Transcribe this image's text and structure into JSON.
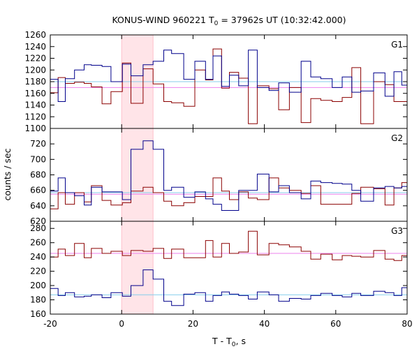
{
  "title": "KONUS-WIND 960221 T",
  "title_sub": "0",
  "title_rest": " = 37962s UT (10:32:42.000)",
  "xlabel_main": "T - T",
  "xlabel_sub": "0",
  "xlabel_rest": ", s",
  "ylabel": "counts / sec",
  "colors": {
    "series_a": "#8b0000",
    "series_b": "#00008b",
    "bg_a": "#ee82ee",
    "bg_b": "#87ceeb",
    "highlight": "#ffe4e8",
    "highlight_edge": "#ffc0cb"
  },
  "chart_data": {
    "type": "line",
    "step": true,
    "xlim": [
      -20,
      80
    ],
    "xticks": [
      -20,
      0,
      20,
      40,
      60,
      80
    ],
    "highlight_interval": [
      0,
      8.8
    ],
    "bin_edges": [
      -20,
      -17.8,
      -15.8,
      -13.2,
      -10.5,
      -8.5,
      -5.5,
      -3.0,
      0.2,
      2.6,
      6.0,
      8.8,
      11.8,
      14.0,
      17.4,
      20.5,
      23.5,
      25.6,
      28.0,
      30.2,
      32.8,
      35.5,
      38.0,
      41.3,
      44.0,
      47.0,
      50.3,
      53.0,
      55.8,
      59.0,
      61.8,
      64.5,
      67.0,
      70.6,
      73.8,
      76.3,
      78.5,
      80
    ],
    "panels": [
      {
        "label": "G1",
        "ylim": [
          1100,
          1260
        ],
        "yticks": [
          1100,
          1120,
          1140,
          1160,
          1180,
          1200,
          1220,
          1240,
          1260
        ],
        "background_a": 1170,
        "background_b": 1180,
        "series_a_values": [
          1161,
          1187,
          1177,
          1179,
          1177,
          1171,
          1142,
          1163,
          1212,
          1143,
          1202,
          1176,
          1146,
          1144,
          1138,
          1200,
          1183,
          1236,
          1169,
          1196,
          1186,
          1108,
          1173,
          1168,
          1132,
          1170,
          1110,
          1151,
          1148,
          1146,
          1153,
          1204,
          1108,
          1180,
          1175,
          1146,
          1146
        ],
        "series_b_values": [
          1184,
          1146,
          1185,
          1200,
          1209,
          1208,
          1206,
          1180,
          1210,
          1190,
          1209,
          1215,
          1234,
          1228,
          1184,
          1215,
          1184,
          1224,
          1172,
          1191,
          1173,
          1234,
          1170,
          1165,
          1178,
          1162,
          1215,
          1188,
          1185,
          1170,
          1188,
          1162,
          1164,
          1195,
          1155,
          1197,
          1174
        ]
      },
      {
        "label": "G2",
        "ylim": [
          620,
          740
        ],
        "yticks": [
          620,
          640,
          660,
          680,
          700,
          720
        ],
        "background_a": 655,
        "background_b": 657,
        "series_a_values": [
          636,
          657,
          642,
          657,
          645,
          666,
          647,
          641,
          644,
          659,
          664,
          657,
          646,
          640,
          644,
          652,
          652,
          676,
          659,
          648,
          658,
          650,
          648,
          676,
          663,
          660,
          656,
          666,
          642,
          642,
          642,
          656,
          664,
          662,
          641,
          663,
          670
        ],
        "series_b_values": [
          659,
          676,
          657,
          653,
          641,
          664,
          658,
          658,
          648,
          713,
          724,
          713,
          660,
          664,
          651,
          658,
          649,
          642,
          634,
          634,
          660,
          660,
          681,
          658,
          666,
          657,
          649,
          672,
          670,
          669,
          668,
          660,
          646,
          663,
          665,
          663,
          665
        ]
      },
      {
        "label": "G3",
        "ylim": [
          160,
          290
        ],
        "yticks": [
          160,
          180,
          200,
          220,
          240,
          260,
          280
        ],
        "background_a": 245,
        "background_b": 187,
        "series_a_values": [
          240,
          251,
          242,
          259,
          239,
          252,
          245,
          248,
          242,
          249,
          248,
          252,
          238,
          251,
          239,
          239,
          263,
          240,
          259,
          245,
          247,
          276,
          243,
          259,
          257,
          254,
          248,
          237,
          244,
          236,
          242,
          241,
          240,
          249,
          237,
          235,
          242
        ],
        "series_b_values": [
          196,
          186,
          190,
          184,
          185,
          187,
          183,
          190,
          185,
          200,
          222,
          209,
          178,
          172,
          188,
          190,
          178,
          186,
          191,
          188,
          186,
          181,
          191,
          187,
          178,
          182,
          181,
          186,
          189,
          186,
          184,
          189,
          186,
          192,
          190,
          186,
          197
        ]
      }
    ]
  }
}
